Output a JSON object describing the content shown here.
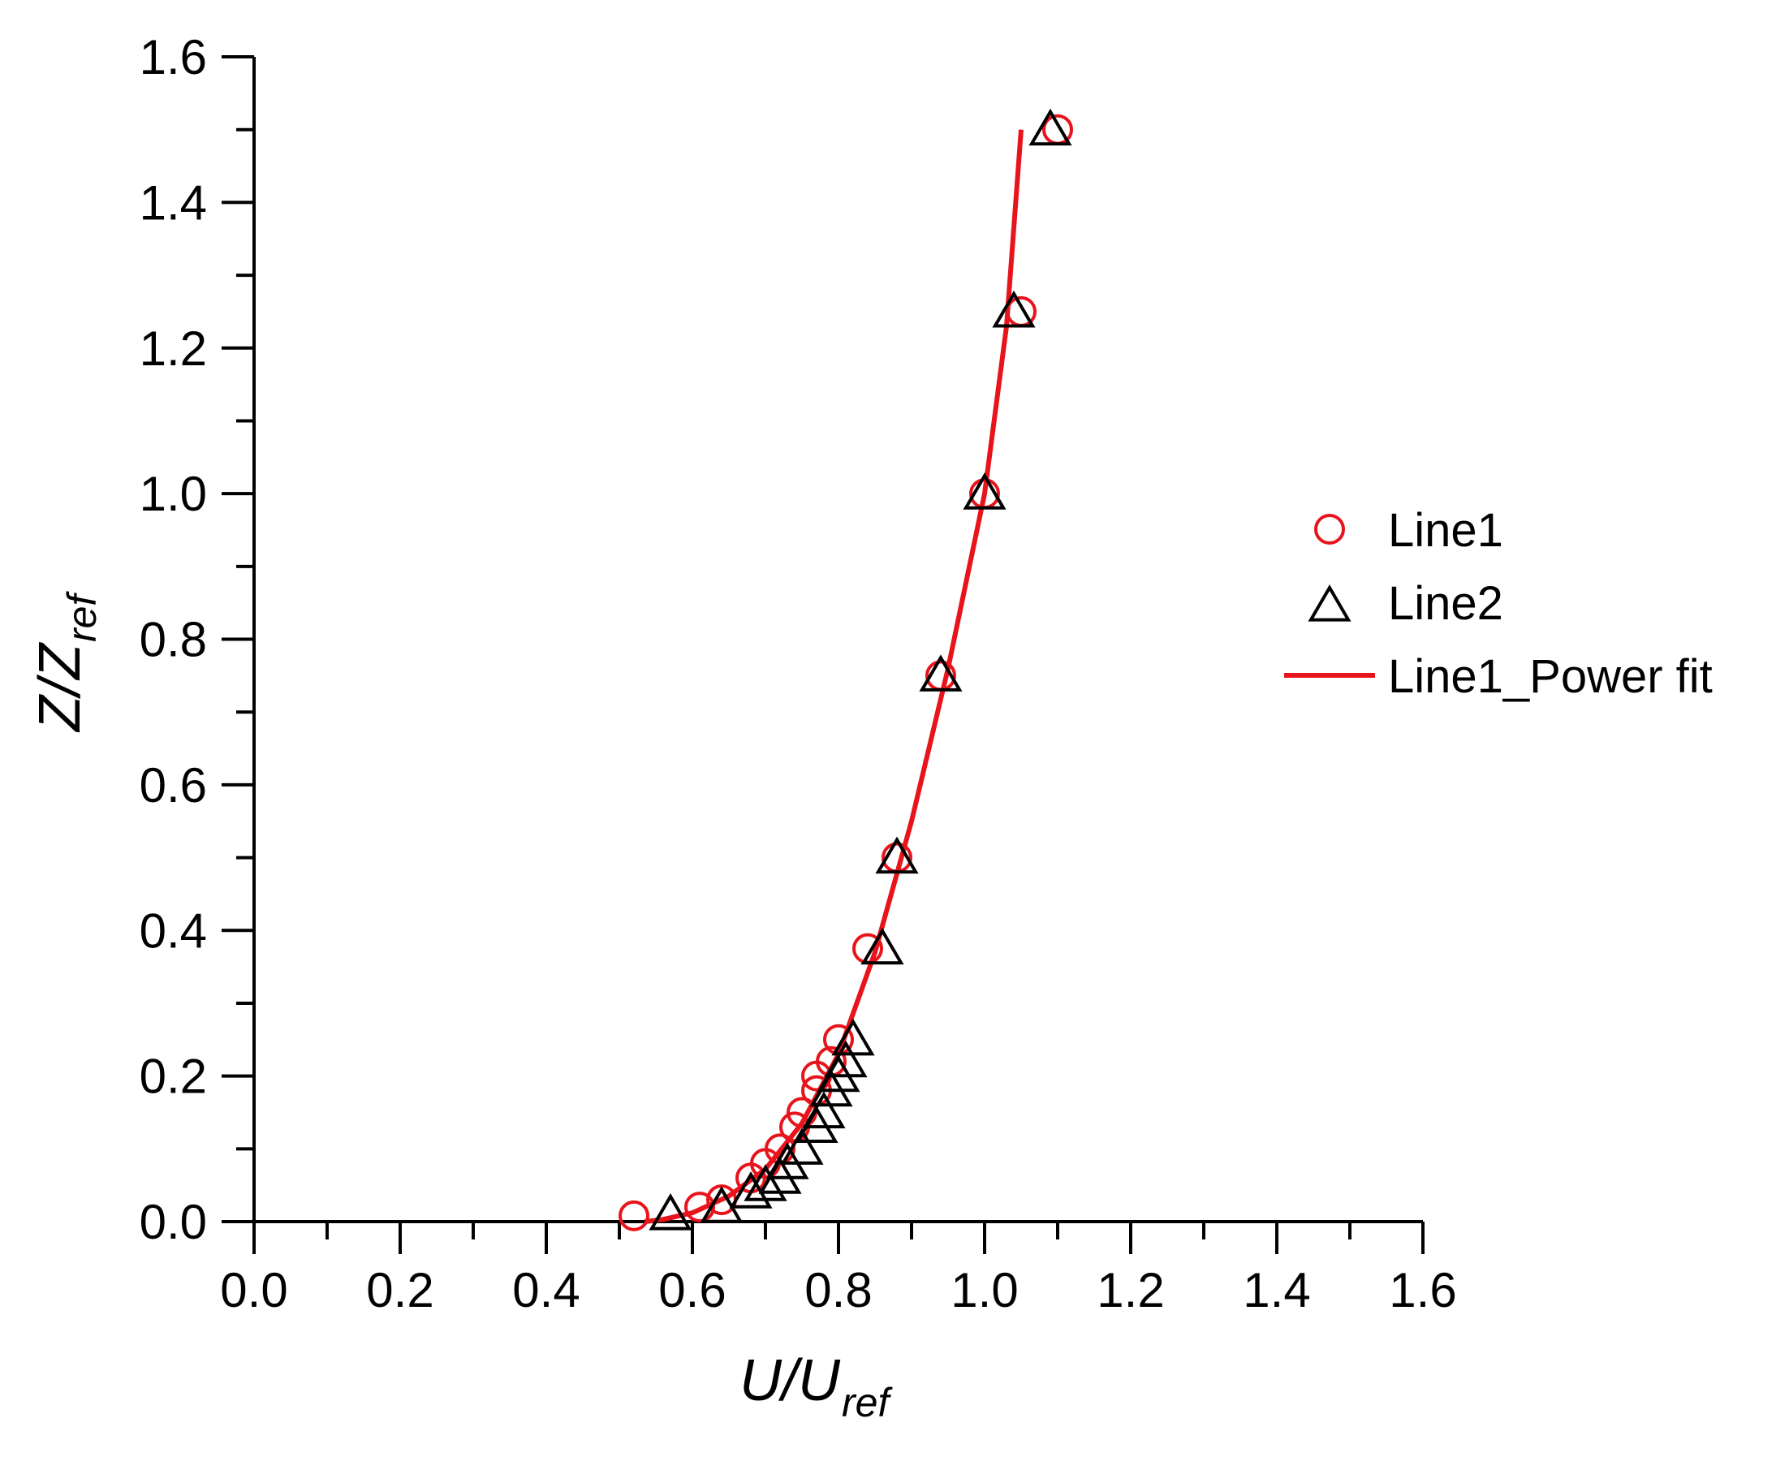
{
  "chart_data": {
    "type": "scatter",
    "xlabel": {
      "main": "U/U",
      "sub": "ref"
    },
    "ylabel": {
      "main": "Z/Z",
      "sub": "ref"
    },
    "xlim": [
      0,
      1.6
    ],
    "ylim": [
      0,
      1.6
    ],
    "xticks": [
      "0.0",
      "0.2",
      "0.4",
      "0.6",
      "0.8",
      "1.0",
      "1.2",
      "1.4",
      "1.6"
    ],
    "yticks": [
      "0.0",
      "0.2",
      "0.4",
      "0.6",
      "0.8",
      "1.0",
      "1.2",
      "1.4",
      "1.6"
    ],
    "legend_position": "right",
    "series": [
      {
        "name": "Line1",
        "marker": "circle",
        "color": "#e8141c",
        "points": [
          [
            0.52,
            0.008
          ],
          [
            0.61,
            0.02
          ],
          [
            0.64,
            0.03
          ],
          [
            0.68,
            0.06
          ],
          [
            0.7,
            0.08
          ],
          [
            0.72,
            0.1
          ],
          [
            0.74,
            0.13
          ],
          [
            0.75,
            0.15
          ],
          [
            0.77,
            0.18
          ],
          [
            0.77,
            0.2
          ],
          [
            0.79,
            0.22
          ],
          [
            0.8,
            0.25
          ],
          [
            0.84,
            0.375
          ],
          [
            0.88,
            0.5
          ],
          [
            0.94,
            0.75
          ],
          [
            1.0,
            1.0
          ],
          [
            1.05,
            1.25
          ],
          [
            1.1,
            1.5
          ]
        ]
      },
      {
        "name": "Line2",
        "marker": "triangle",
        "color": "#000000",
        "points": [
          [
            0.57,
            0.01
          ],
          [
            0.64,
            0.02
          ],
          [
            0.68,
            0.04
          ],
          [
            0.7,
            0.05
          ],
          [
            0.72,
            0.06
          ],
          [
            0.73,
            0.08
          ],
          [
            0.75,
            0.1
          ],
          [
            0.77,
            0.13
          ],
          [
            0.78,
            0.15
          ],
          [
            0.79,
            0.18
          ],
          [
            0.8,
            0.2
          ],
          [
            0.81,
            0.22
          ],
          [
            0.82,
            0.25
          ],
          [
            0.86,
            0.375
          ],
          [
            0.88,
            0.5
          ],
          [
            0.94,
            0.75
          ],
          [
            1.0,
            1.0
          ],
          [
            1.04,
            1.25
          ],
          [
            1.09,
            1.5
          ]
        ]
      },
      {
        "name": "Line1_Power fit",
        "marker": "line",
        "color": "#e8141c",
        "x": [
          0.535,
          0.56,
          0.6,
          0.65,
          0.7,
          0.75,
          0.8,
          0.85,
          0.9,
          0.95,
          1.0,
          1.03,
          1.05
        ],
        "y": [
          0.0,
          0.003,
          0.012,
          0.035,
          0.072,
          0.135,
          0.23,
          0.37,
          0.55,
          0.76,
          1.0,
          1.23,
          1.5
        ]
      }
    ]
  }
}
